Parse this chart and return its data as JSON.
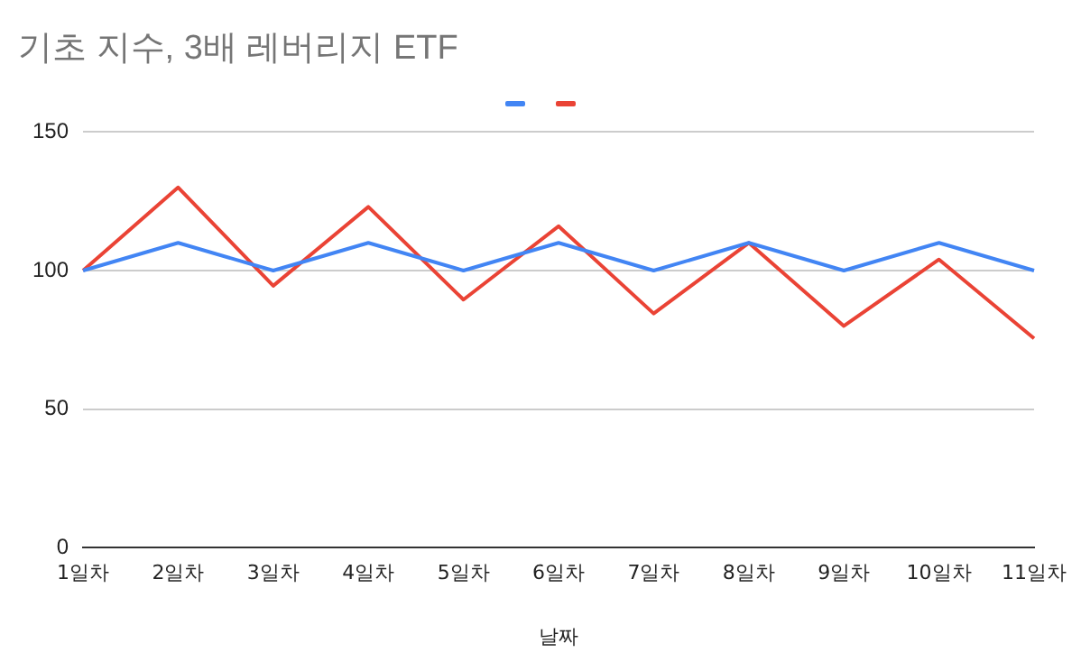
{
  "chart_data": {
    "type": "line",
    "title": "기초 지수, 3배 레버리지 ETF",
    "xlabel": "날짜",
    "categories": [
      "1일차",
      "2일차",
      "3일차",
      "4일차",
      "5일차",
      "6일차",
      "7일차",
      "8일차",
      "9일차",
      "10일차",
      "11일차"
    ],
    "series": [
      {
        "color": "#4285f4",
        "values": [
          100,
          110,
          100,
          110,
          100,
          110,
          100,
          110,
          100,
          110,
          100
        ]
      },
      {
        "color": "#ea4335",
        "values": [
          100,
          130,
          94.5,
          123,
          89.5,
          116,
          84.5,
          110,
          80,
          104,
          75.5
        ]
      }
    ],
    "ylim": [
      0,
      150
    ],
    "yticks": [
      0,
      50,
      100,
      150
    ],
    "grid": "y",
    "marker": "none",
    "line_style": "solid"
  }
}
